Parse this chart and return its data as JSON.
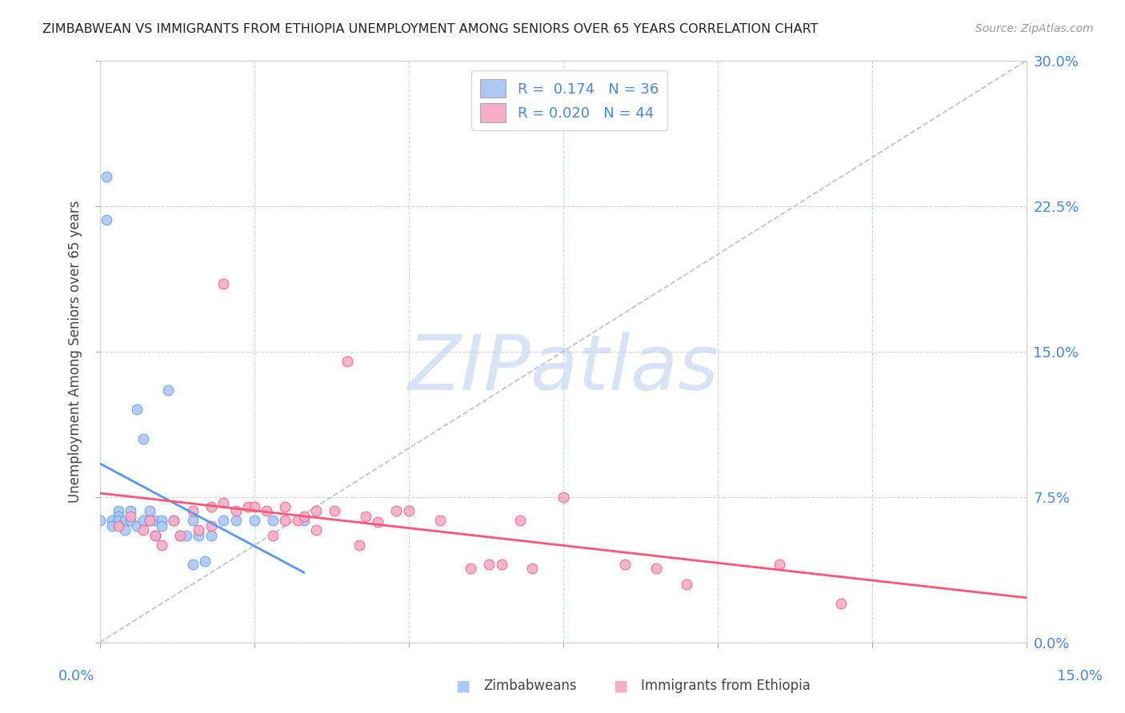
{
  "title": "ZIMBABWEAN VS IMMIGRANTS FROM ETHIOPIA UNEMPLOYMENT AMONG SENIORS OVER 65 YEARS CORRELATION CHART",
  "source": "Source: ZipAtlas.com",
  "ylabel": "Unemployment Among Seniors over 65 years",
  "ylim": [
    0.0,
    0.3
  ],
  "xlim": [
    0.0,
    0.15
  ],
  "zim_R": "0.174",
  "zim_N": "36",
  "eth_R": "0.020",
  "eth_N": "44",
  "zim_color": "#adc8f5",
  "eth_color": "#f5adc8",
  "zim_line_color": "#5599ff",
  "eth_line_color": "#ff5577",
  "diagonal_color": "#b8c4d8",
  "watermark_color": "#d8e4f5",
  "background_color": "#ffffff",
  "legend_facecolor": "#ffffff",
  "grid_color": "#c8d4e8",
  "tick_color": "#4488ee",
  "zim_scatter_x": [
    0.0,
    0.001,
    0.001,
    0.002,
    0.002,
    0.003,
    0.003,
    0.003,
    0.004,
    0.004,
    0.005,
    0.005,
    0.006,
    0.006,
    0.007,
    0.007,
    0.008,
    0.008,
    0.009,
    0.009,
    0.01,
    0.01,
    0.011,
    0.012,
    0.013,
    0.014,
    0.015,
    0.015,
    0.016,
    0.017,
    0.018,
    0.02,
    0.022,
    0.025,
    0.028,
    0.033
  ],
  "zim_scatter_y": [
    0.063,
    0.24,
    0.218,
    0.063,
    0.06,
    0.068,
    0.065,
    0.063,
    0.063,
    0.058,
    0.063,
    0.068,
    0.06,
    0.12,
    0.063,
    0.105,
    0.063,
    0.068,
    0.055,
    0.063,
    0.063,
    0.06,
    0.13,
    0.063,
    0.055,
    0.055,
    0.063,
    0.04,
    0.055,
    0.042,
    0.055,
    0.063,
    0.063,
    0.063,
    0.063,
    0.063
  ],
  "eth_scatter_x": [
    0.003,
    0.005,
    0.007,
    0.008,
    0.009,
    0.01,
    0.012,
    0.013,
    0.015,
    0.016,
    0.018,
    0.018,
    0.02,
    0.02,
    0.022,
    0.024,
    0.025,
    0.027,
    0.028,
    0.03,
    0.03,
    0.032,
    0.033,
    0.035,
    0.035,
    0.038,
    0.04,
    0.042,
    0.043,
    0.045,
    0.048,
    0.05,
    0.055,
    0.06,
    0.063,
    0.065,
    0.068,
    0.07,
    0.075,
    0.085,
    0.09,
    0.095,
    0.11,
    0.12
  ],
  "eth_scatter_y": [
    0.06,
    0.065,
    0.058,
    0.063,
    0.055,
    0.05,
    0.063,
    0.055,
    0.068,
    0.058,
    0.07,
    0.06,
    0.185,
    0.072,
    0.068,
    0.07,
    0.07,
    0.068,
    0.055,
    0.07,
    0.063,
    0.063,
    0.065,
    0.068,
    0.058,
    0.068,
    0.145,
    0.05,
    0.065,
    0.062,
    0.068,
    0.068,
    0.063,
    0.038,
    0.04,
    0.04,
    0.063,
    0.038,
    0.075,
    0.04,
    0.038,
    0.03,
    0.04,
    0.02
  ]
}
